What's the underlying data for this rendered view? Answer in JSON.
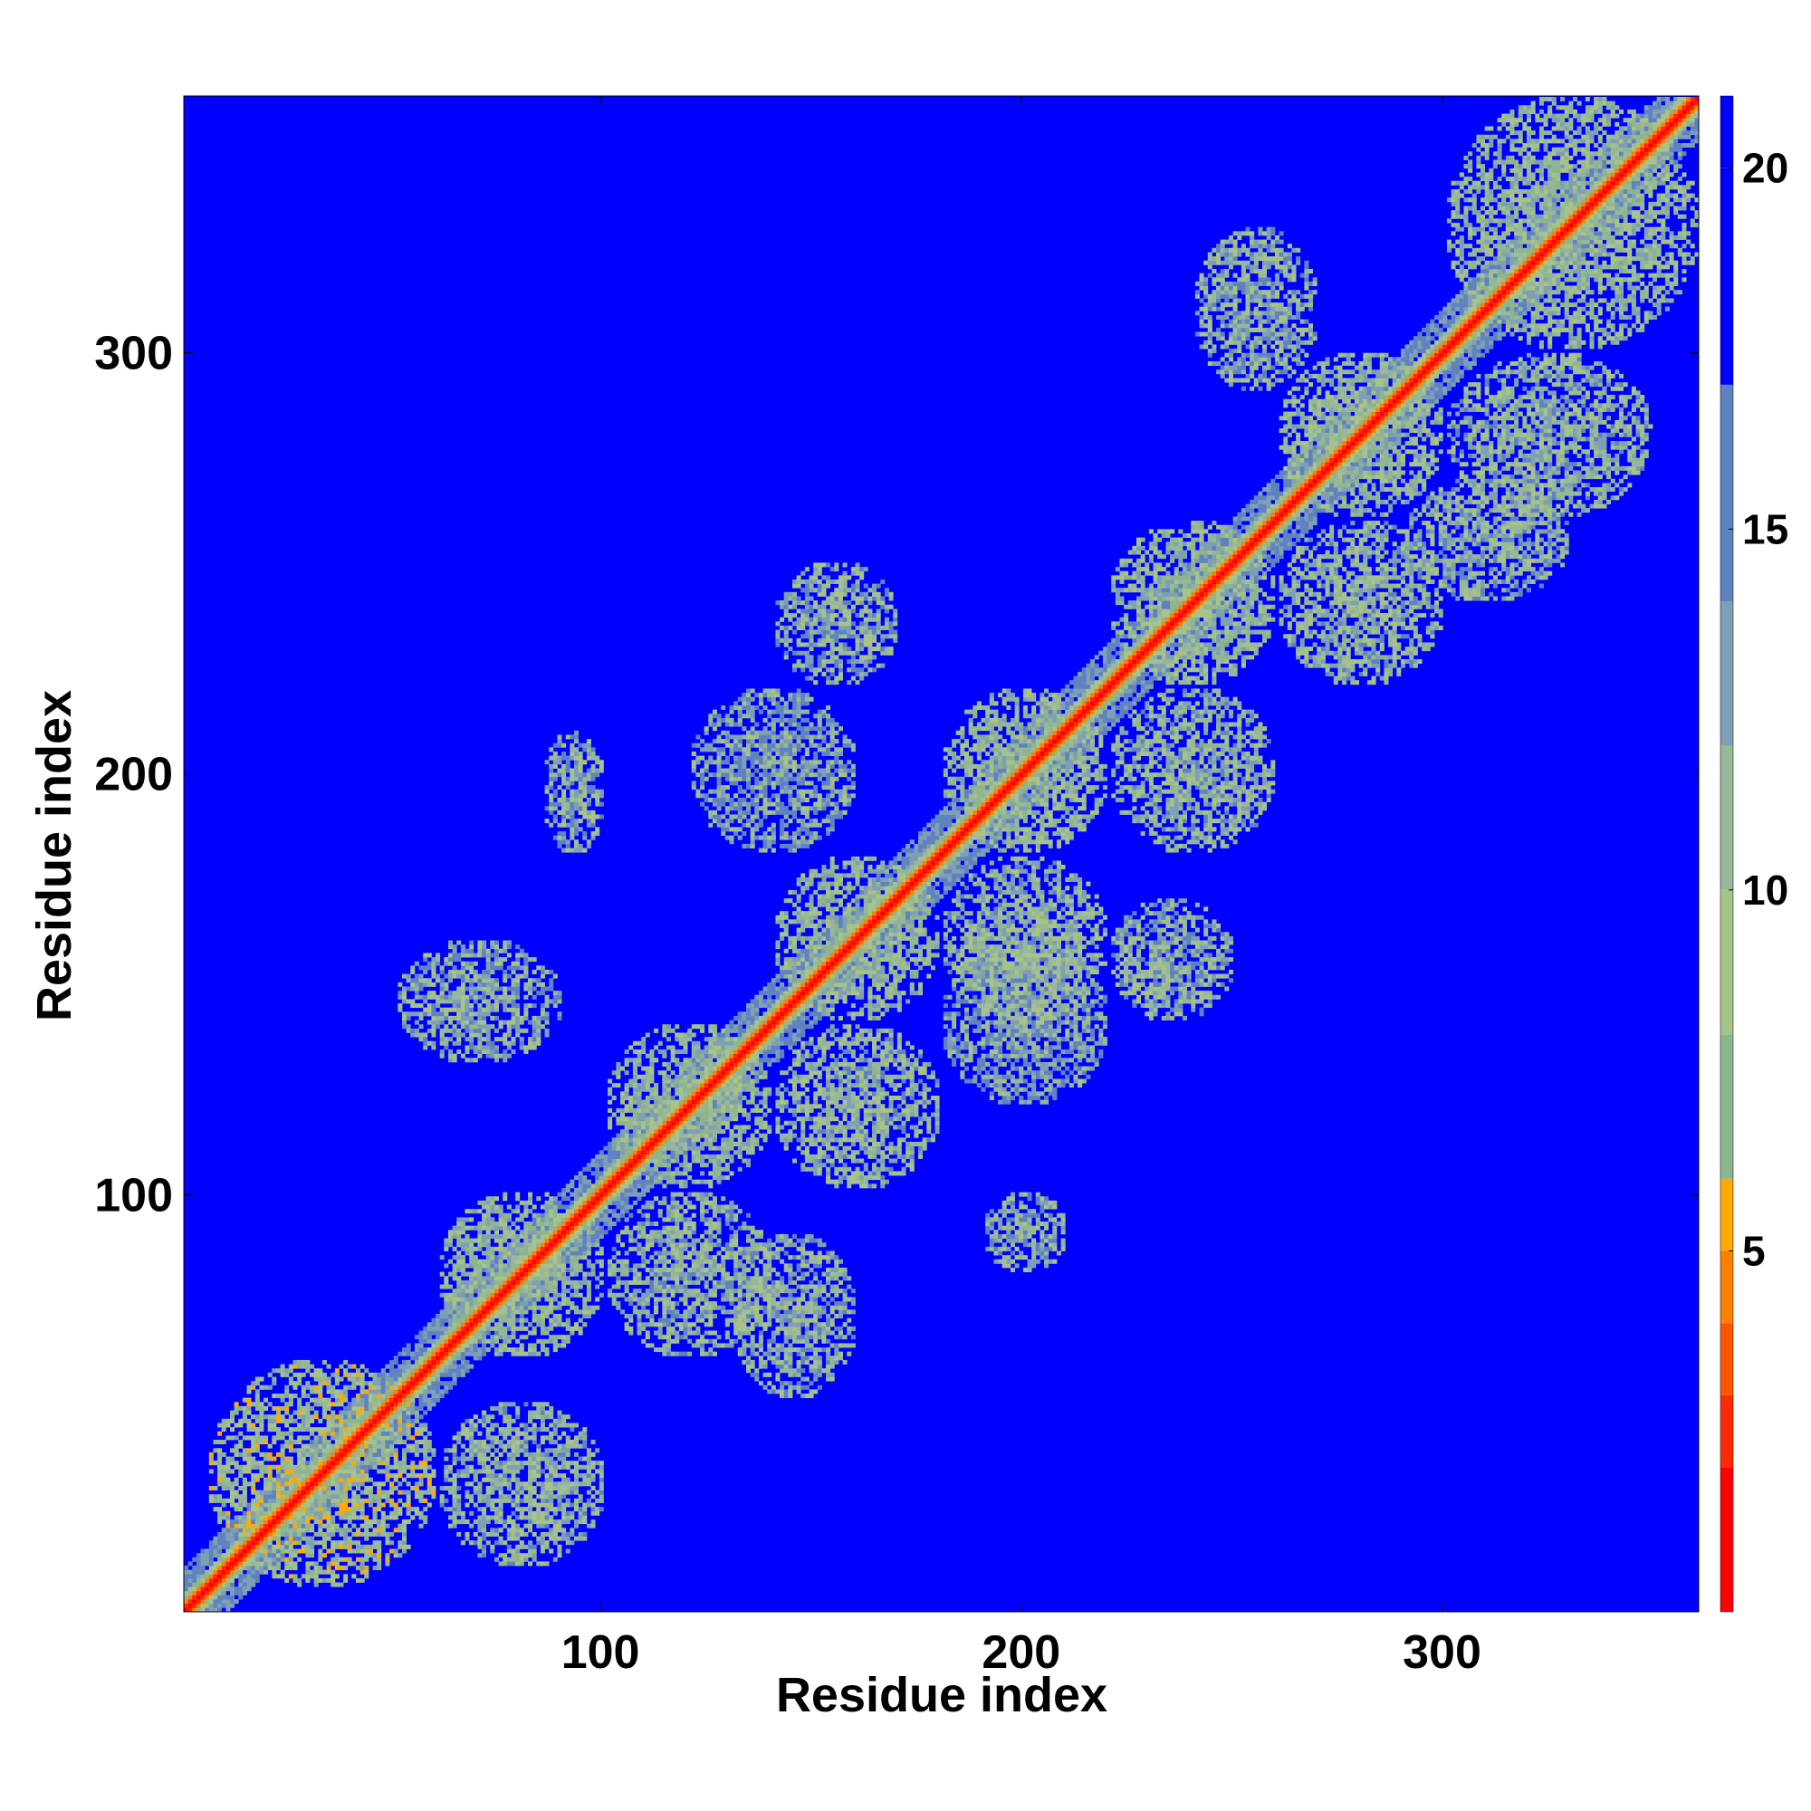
{
  "chart_data": {
    "type": "heatmap",
    "title": "",
    "xlabel": "Residue index",
    "ylabel": "Residue index",
    "xlim": [
      1,
      361
    ],
    "ylim": [
      1,
      361
    ],
    "x_ticks": [
      100,
      200,
      300
    ],
    "y_ticks": [
      100,
      200,
      300
    ],
    "colorbar": {
      "min": 0,
      "max": 21,
      "ticks": [
        5,
        10,
        15,
        20
      ],
      "colors_low_to_high": [
        "#ff0000",
        "#ff2a00",
        "#ff5500",
        "#ff8000",
        "#ffaa00",
        "#8fb58f",
        "#a8c38a",
        "#98b898",
        "#7f9fb5",
        "#5f83c0",
        "#0000ff"
      ],
      "thresholds": [
        2,
        3,
        4,
        5,
        6,
        8,
        10,
        12,
        14,
        17,
        20
      ]
    },
    "background_value": 21,
    "diagonal_value": 1,
    "contact_blocks": [
      {
        "i": [
          5,
          60
        ],
        "j": [
          5,
          60
        ],
        "value": 9
      },
      {
        "i": [
          60,
          100
        ],
        "j": [
          60,
          100
        ],
        "value": 10
      },
      {
        "i": [
          100,
          140
        ],
        "j": [
          100,
          140
        ],
        "value": 10
      },
      {
        "i": [
          140,
          180
        ],
        "j": [
          140,
          180
        ],
        "value": 10
      },
      {
        "i": [
          180,
          220
        ],
        "j": [
          180,
          220
        ],
        "value": 10
      },
      {
        "i": [
          220,
          260
        ],
        "j": [
          220,
          260
        ],
        "value": 10
      },
      {
        "i": [
          260,
          300
        ],
        "j": [
          260,
          300
        ],
        "value": 10
      },
      {
        "i": [
          300,
          361
        ],
        "j": [
          300,
          361
        ],
        "value": 10
      },
      {
        "i": [
          10,
          50
        ],
        "j": [
          60,
          100
        ],
        "value": 11
      },
      {
        "i": [
          60,
          100
        ],
        "j": [
          100,
          140
        ],
        "value": 11
      },
      {
        "i": [
          100,
          140
        ],
        "j": [
          140,
          180
        ],
        "value": 11
      },
      {
        "i": [
          140,
          180
        ],
        "j": [
          180,
          220
        ],
        "value": 11
      },
      {
        "i": [
          180,
          220
        ],
        "j": [
          220,
          260
        ],
        "value": 11
      },
      {
        "i": [
          220,
          260
        ],
        "j": [
          260,
          300
        ],
        "value": 11
      },
      {
        "i": [
          260,
          300
        ],
        "j": [
          300,
          350
        ],
        "value": 11
      },
      {
        "i": [
          50,
          90
        ],
        "j": [
          130,
          160
        ],
        "value": 12
      },
      {
        "i": [
          80,
          100
        ],
        "j": [
          190,
          210
        ],
        "value": 12
      },
      {
        "i": [
          180,
          210
        ],
        "j": [
          85,
          100
        ],
        "value": 12
      },
      {
        "i": [
          140,
          170
        ],
        "j": [
          220,
          250
        ],
        "value": 12
      },
      {
        "i": [
          220,
          250
        ],
        "j": [
          140,
          170
        ],
        "value": 12
      },
      {
        "i": [
          290,
          330
        ],
        "j": [
          240,
          270
        ],
        "value": 12
      },
      {
        "i": [
          240,
          270
        ],
        "j": [
          290,
          330
        ],
        "value": 12
      },
      {
        "i": [
          130,
          160
        ],
        "j": [
          50,
          90
        ],
        "value": 12
      },
      {
        "i": [
          180,
          220
        ],
        "j": [
          120,
          160
        ],
        "value": 13
      },
      {
        "i": [
          120,
          160
        ],
        "j": [
          180,
          220
        ],
        "value": 13
      }
    ]
  }
}
